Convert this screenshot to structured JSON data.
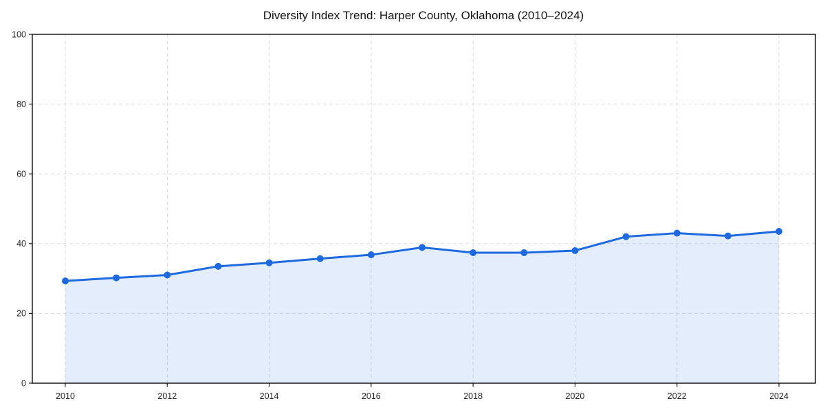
{
  "chart_data": {
    "type": "area",
    "title": "Diversity Index Trend: Harper County, Oklahoma (2010–2024)",
    "x": [
      2010,
      2011,
      2012,
      2013,
      2014,
      2015,
      2016,
      2017,
      2018,
      2019,
      2020,
      2021,
      2022,
      2023,
      2024
    ],
    "series": [
      {
        "name": "Diversity Index",
        "values": [
          29.3,
          30.2,
          31.0,
          33.5,
          34.5,
          35.7,
          36.8,
          38.9,
          37.4,
          37.4,
          38.0,
          42.0,
          43.0,
          42.2,
          43.5
        ]
      }
    ],
    "xlabel": "",
    "ylabel": "",
    "xticks": [
      2010,
      2012,
      2014,
      2016,
      2018,
      2020,
      2022,
      2024
    ],
    "yticks": [
      0,
      20,
      40,
      60,
      80,
      100
    ],
    "ylim": [
      0,
      100
    ],
    "grid": true,
    "grid_style": "dashed",
    "legend": "none",
    "marker": "circle",
    "colors": {
      "line": "#1d6ae0",
      "marker": "#1d6ae0",
      "fill": "rgba(29, 106, 224, 0.12)",
      "grid": "#dcdcdc",
      "spine": "#1a1a1a",
      "tick_label": "#262626",
      "title": "#111111",
      "background": "#ffffff"
    }
  }
}
